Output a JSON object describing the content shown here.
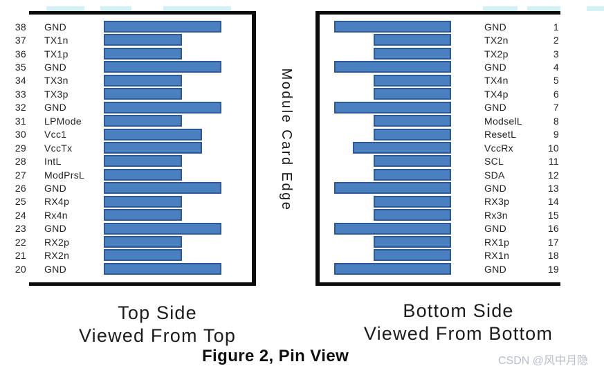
{
  "colors": {
    "bar_fill": "#4a7fc0",
    "bar_border": "#2d5a96",
    "panel_border": "#0c0c0c",
    "text": "#212121",
    "watermark": "#b7bec9",
    "highlight": "#cdeef4"
  },
  "center_label": "Module Card Edge",
  "captions": {
    "left_line1": "Top Side",
    "left_line2": "Viewed From Top",
    "right_line1": "Bottom Side",
    "right_line2": "Viewed From Bottom",
    "figure": "Figure 2, Pin View",
    "watermark": "CSDN @风中月隐"
  },
  "left_panel": {
    "side": "top",
    "pins": [
      {
        "num": "38",
        "label": "GND",
        "bar": 170
      },
      {
        "num": "37",
        "label": "TX1n",
        "bar": 113
      },
      {
        "num": "36",
        "label": "TX1p",
        "bar": 113
      },
      {
        "num": "35",
        "label": "GND",
        "bar": 170
      },
      {
        "num": "34",
        "label": "TX3n",
        "bar": 113
      },
      {
        "num": "33",
        "label": "TX3p",
        "bar": 113
      },
      {
        "num": "32",
        "label": "GND",
        "bar": 170
      },
      {
        "num": "31",
        "label": "LPMode",
        "bar": 113
      },
      {
        "num": "30",
        "label": "Vcc1",
        "bar": 142
      },
      {
        "num": "29",
        "label": "VccTx",
        "bar": 142
      },
      {
        "num": "28",
        "label": "IntL",
        "bar": 113
      },
      {
        "num": "27",
        "label": "ModPrsL",
        "bar": 113
      },
      {
        "num": "26",
        "label": "GND",
        "bar": 170
      },
      {
        "num": "25",
        "label": "RX4p",
        "bar": 113
      },
      {
        "num": "24",
        "label": "Rx4n",
        "bar": 113
      },
      {
        "num": "23",
        "label": "GND",
        "bar": 170
      },
      {
        "num": "22",
        "label": "RX2p",
        "bar": 113
      },
      {
        "num": "21",
        "label": "RX2n",
        "bar": 113
      },
      {
        "num": "20",
        "label": "GND",
        "bar": 170
      }
    ]
  },
  "right_panel": {
    "side": "bottom",
    "pins": [
      {
        "num": "1",
        "label": "GND",
        "bar": 169
      },
      {
        "num": "2",
        "label": "TX2n",
        "bar": 112
      },
      {
        "num": "3",
        "label": "TX2p",
        "bar": 112
      },
      {
        "num": "4",
        "label": "GND",
        "bar": 169
      },
      {
        "num": "5",
        "label": "TX4n",
        "bar": 112
      },
      {
        "num": "6",
        "label": "TX4p",
        "bar": 112
      },
      {
        "num": "7",
        "label": "GND",
        "bar": 169
      },
      {
        "num": "8",
        "label": "ModselL",
        "bar": 112
      },
      {
        "num": "9",
        "label": "ResetL",
        "bar": 112
      },
      {
        "num": "10",
        "label": "VccRx",
        "bar": 142
      },
      {
        "num": "11",
        "label": "SCL",
        "bar": 112
      },
      {
        "num": "12",
        "label": "SDA",
        "bar": 112
      },
      {
        "num": "13",
        "label": "GND",
        "bar": 169
      },
      {
        "num": "14",
        "label": "RX3p",
        "bar": 112
      },
      {
        "num": "15",
        "label": "Rx3n",
        "bar": 112
      },
      {
        "num": "16",
        "label": "GND",
        "bar": 169
      },
      {
        "num": "17",
        "label": "RX1p",
        "bar": 112
      },
      {
        "num": "18",
        "label": "RX1n",
        "bar": 112
      },
      {
        "num": "19",
        "label": "GND",
        "bar": 169
      }
    ]
  }
}
